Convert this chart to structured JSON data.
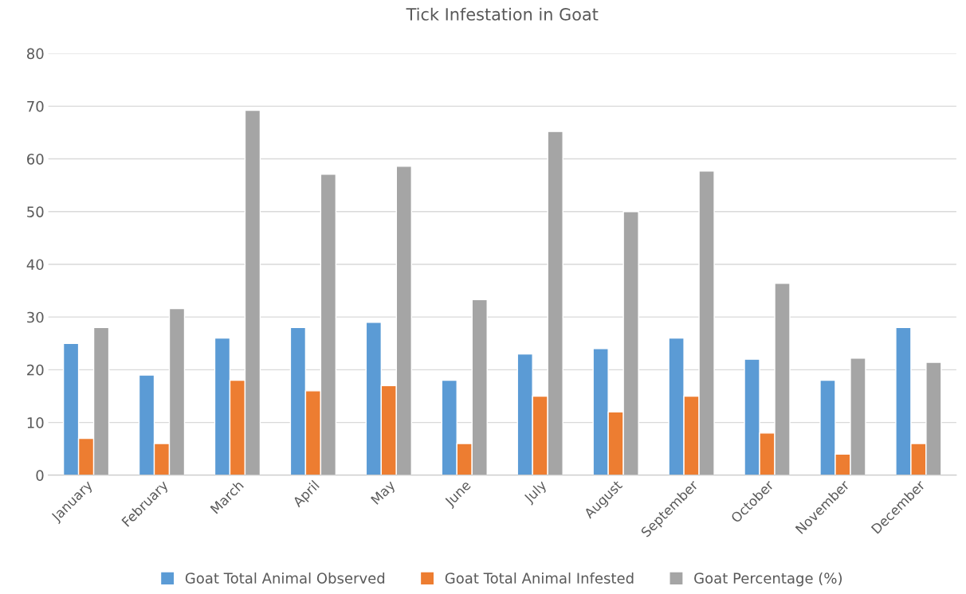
{
  "chart_data": {
    "type": "bar",
    "title": "Tick Infestation in Goat",
    "categories": [
      "January",
      "February",
      "March",
      "April",
      "May",
      "June",
      "July",
      "August",
      "September",
      "October",
      "November",
      "December"
    ],
    "series": [
      {
        "name": "Goat Total Animal Observed",
        "color": "#5b9bd5",
        "values": [
          25,
          19,
          26,
          28,
          29,
          18,
          23,
          24,
          26,
          22,
          18,
          28
        ]
      },
      {
        "name": "Goat Total Animal Infested",
        "color": "#ed7d31",
        "values": [
          7,
          6,
          18,
          16,
          17,
          6,
          15,
          12,
          15,
          8,
          4,
          6
        ]
      },
      {
        "name": "Goat Percentage (%)",
        "color": "#a5a5a5",
        "values": [
          28,
          31.6,
          69.2,
          57.1,
          58.6,
          33.3,
          65.2,
          50,
          57.7,
          36.4,
          22.2,
          21.4
        ]
      }
    ],
    "ylim": [
      0,
      80
    ],
    "yticks": [
      0,
      10,
      20,
      30,
      40,
      50,
      60,
      70,
      80
    ],
    "grid": "y",
    "legend": "bottom"
  }
}
